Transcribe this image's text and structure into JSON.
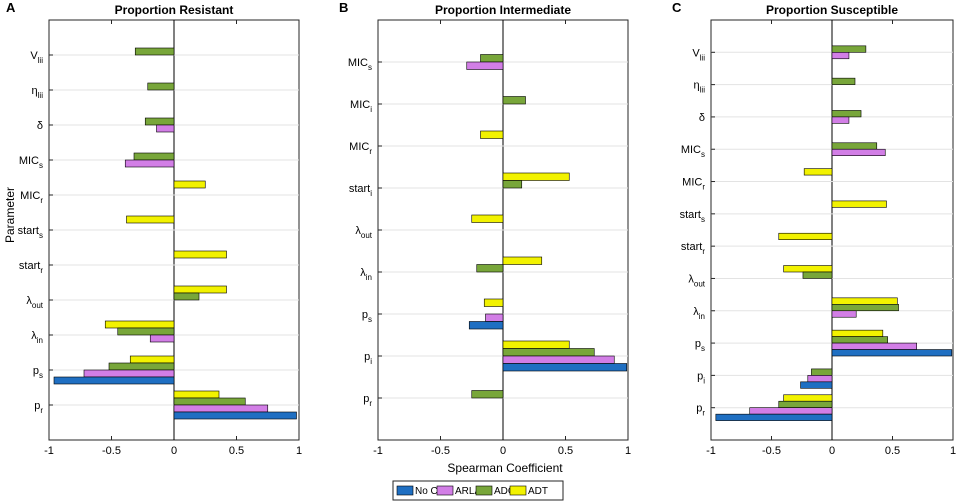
{
  "figure": {
    "ylabel": "Parameter",
    "xlabel": "Spearman Coefficient",
    "legend": [
      {
        "name": "No CTC",
        "color": "#1f6fc2"
      },
      {
        "name": "ARLA",
        "color": "#d27ee6"
      },
      {
        "name": "ADC",
        "color": "#78a63a"
      },
      {
        "name": "ADT",
        "color": "#f2f200"
      }
    ]
  },
  "chart_data": [
    {
      "type": "bar",
      "orientation": "horizontal",
      "panel_letter": "A",
      "title": "Proportion Resistant",
      "xlim": [
        -1,
        1
      ],
      "xticks": [
        "-1",
        "-0.5",
        "0",
        "0.5",
        "1"
      ],
      "categories": [
        {
          "base": "V",
          "sub": "lii"
        },
        {
          "base": "η",
          "sub": "lii"
        },
        {
          "base": "δ",
          "sub": ""
        },
        {
          "base": "MIC",
          "sub": "s"
        },
        {
          "base": "MIC",
          "sub": "r"
        },
        {
          "base": "start",
          "sub": "s"
        },
        {
          "base": "start",
          "sub": "r"
        },
        {
          "base": "λ",
          "sub": "out"
        },
        {
          "base": "λ",
          "sub": "in"
        },
        {
          "base": "p",
          "sub": "s"
        },
        {
          "base": "p",
          "sub": "r"
        }
      ],
      "series": [
        {
          "name": "ADT",
          "values": [
            null,
            null,
            null,
            null,
            0.25,
            -0.38,
            0.42,
            0.42,
            -0.55,
            -0.35,
            0.36
          ]
        },
        {
          "name": "ADC",
          "values": [
            -0.31,
            -0.21,
            -0.23,
            -0.32,
            null,
            null,
            null,
            0.2,
            -0.45,
            -0.52,
            0.57
          ]
        },
        {
          "name": "ARLA",
          "values": [
            null,
            null,
            -0.14,
            -0.39,
            null,
            null,
            null,
            null,
            -0.19,
            -0.72,
            0.75
          ]
        },
        {
          "name": "No CTC",
          "values": [
            null,
            null,
            null,
            null,
            null,
            null,
            null,
            null,
            null,
            -0.96,
            0.98
          ]
        }
      ]
    },
    {
      "type": "bar",
      "orientation": "horizontal",
      "panel_letter": "B",
      "title": "Proportion Intermediate",
      "xlim": [
        -1,
        1
      ],
      "xticks": [
        "-1",
        "-0.5",
        "0",
        "0.5",
        "1"
      ],
      "categories": [
        {
          "base": "MIC",
          "sub": "s"
        },
        {
          "base": "MIC",
          "sub": "i"
        },
        {
          "base": "MIC",
          "sub": "r"
        },
        {
          "base": "start",
          "sub": "i"
        },
        {
          "base": "λ",
          "sub": "out"
        },
        {
          "base": "λ",
          "sub": "in"
        },
        {
          "base": "p",
          "sub": "s"
        },
        {
          "base": "p",
          "sub": "i"
        },
        {
          "base": "p",
          "sub": "r"
        }
      ],
      "series": [
        {
          "name": "ADT",
          "values": [
            null,
            null,
            -0.18,
            0.53,
            -0.25,
            0.31,
            -0.15,
            0.53,
            null
          ]
        },
        {
          "name": "ADC",
          "values": [
            -0.18,
            0.18,
            null,
            0.15,
            null,
            -0.21,
            null,
            0.73,
            -0.25
          ]
        },
        {
          "name": "ARLA",
          "values": [
            -0.29,
            null,
            null,
            null,
            null,
            null,
            -0.14,
            0.89,
            null
          ]
        },
        {
          "name": "No CTC",
          "values": [
            null,
            null,
            null,
            null,
            null,
            null,
            -0.27,
            0.99,
            null
          ]
        }
      ]
    },
    {
      "type": "bar",
      "orientation": "horizontal",
      "panel_letter": "C",
      "title": "Proportion Susceptible",
      "xlim": [
        -1,
        1
      ],
      "xticks": [
        "-1",
        "-0.5",
        "0",
        "0.5",
        "1"
      ],
      "categories": [
        {
          "base": "V",
          "sub": "lii"
        },
        {
          "base": "η",
          "sub": "lii"
        },
        {
          "base": "δ",
          "sub": ""
        },
        {
          "base": "MIC",
          "sub": "s"
        },
        {
          "base": "MIC",
          "sub": "r"
        },
        {
          "base": "start",
          "sub": "s"
        },
        {
          "base": "start",
          "sub": "r"
        },
        {
          "base": "λ",
          "sub": "out"
        },
        {
          "base": "λ",
          "sub": "in"
        },
        {
          "base": "p",
          "sub": "s"
        },
        {
          "base": "p",
          "sub": "i"
        },
        {
          "base": "p",
          "sub": "r"
        }
      ],
      "series": [
        {
          "name": "ADT",
          "values": [
            null,
            null,
            null,
            null,
            -0.23,
            0.45,
            -0.44,
            -0.4,
            0.54,
            0.42,
            null,
            -0.4
          ]
        },
        {
          "name": "ADC",
          "values": [
            0.28,
            0.19,
            0.24,
            0.37,
            null,
            null,
            null,
            -0.24,
            0.55,
            0.46,
            -0.17,
            -0.44
          ]
        },
        {
          "name": "ARLA",
          "values": [
            0.14,
            null,
            0.14,
            0.44,
            null,
            null,
            null,
            null,
            0.2,
            0.7,
            -0.2,
            -0.68
          ]
        },
        {
          "name": "No CTC",
          "values": [
            null,
            null,
            null,
            null,
            null,
            null,
            null,
            null,
            null,
            0.99,
            -0.26,
            -0.96
          ]
        }
      ]
    }
  ]
}
